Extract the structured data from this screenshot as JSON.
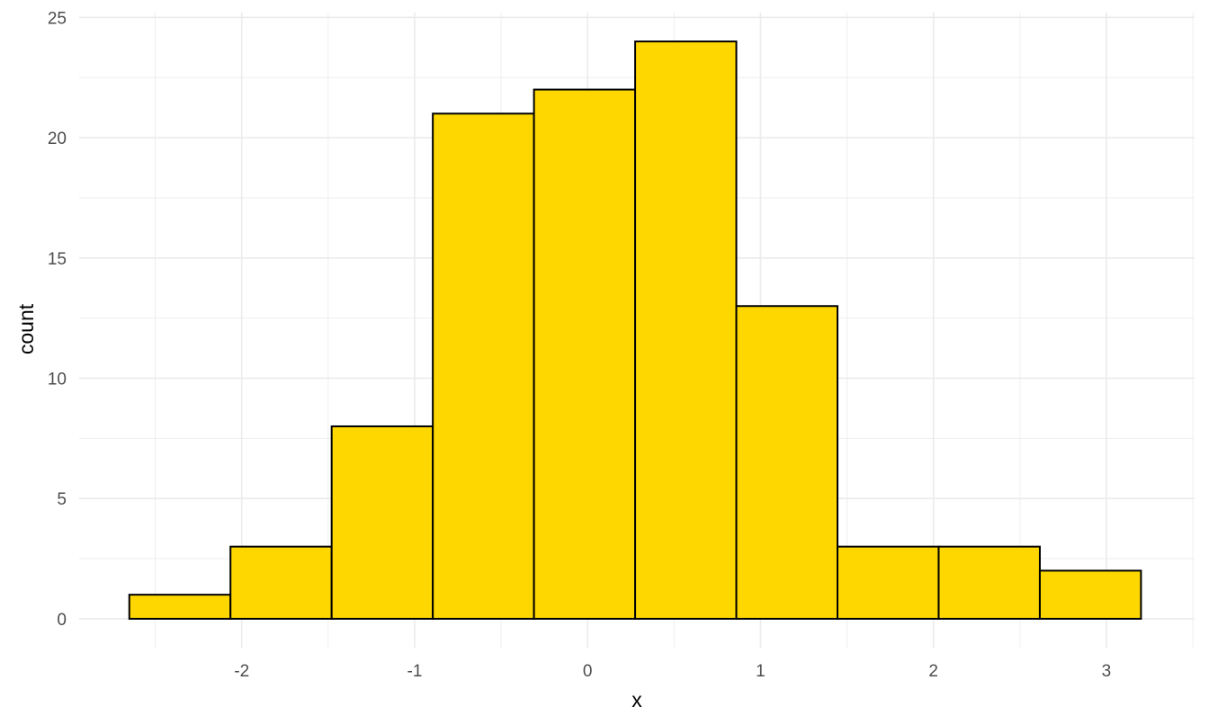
{
  "chart_data": {
    "type": "bar",
    "subtype": "histogram",
    "xlabel": "x",
    "ylabel": "count",
    "xlim": [
      -2.94,
      3.51
    ],
    "ylim": [
      -1.2,
      25.2
    ],
    "x_ticks": [
      -2,
      -1,
      0,
      1,
      2,
      3
    ],
    "y_ticks": [
      0,
      5,
      10,
      15,
      20,
      25
    ],
    "bins": [
      {
        "x_start": -2.65,
        "x_end": -2.065,
        "count": 1
      },
      {
        "x_start": -2.065,
        "x_end": -1.48,
        "count": 3
      },
      {
        "x_start": -1.48,
        "x_end": -0.895,
        "count": 8
      },
      {
        "x_start": -0.895,
        "x_end": -0.31,
        "count": 21
      },
      {
        "x_start": -0.31,
        "x_end": 0.275,
        "count": 22
      },
      {
        "x_start": 0.275,
        "x_end": 0.86,
        "count": 24
      },
      {
        "x_start": 0.86,
        "x_end": 1.445,
        "count": 13
      },
      {
        "x_start": 1.445,
        "x_end": 2.03,
        "count": 3
      },
      {
        "x_start": 2.03,
        "x_end": 2.615,
        "count": 3
      },
      {
        "x_start": 2.615,
        "x_end": 3.2,
        "count": 2
      }
    ],
    "fill_color": "#FFD700",
    "edge_color": "#000000",
    "grid": true,
    "grid_color": "#ebebeb",
    "legend": "none"
  }
}
